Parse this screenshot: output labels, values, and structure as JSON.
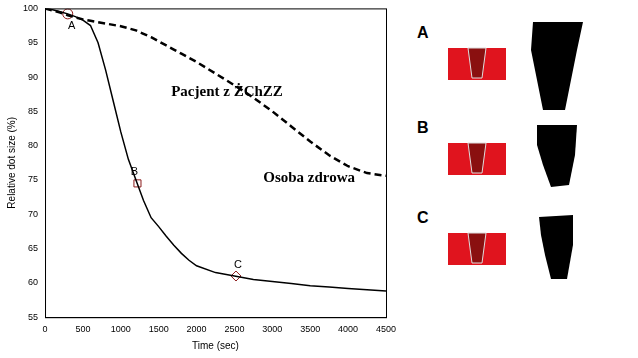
{
  "chart_data": {
    "type": "line",
    "x_label": "Time (sec)",
    "y_label": "Relative dot size (%)",
    "xlim": [
      0,
      4500
    ],
    "xticks": [
      0,
      500,
      1000,
      1500,
      2000,
      2500,
      3000,
      3500,
      4000,
      4500
    ],
    "ylim": [
      55,
      100
    ],
    "yticks": [
      55,
      60,
      65,
      70,
      75,
      80,
      85,
      90,
      95,
      100
    ],
    "grid": false,
    "x": [
      0,
      100,
      200,
      300,
      400,
      500,
      600,
      700,
      800,
      900,
      1000,
      1100,
      1200,
      1300,
      1400,
      1500,
      1600,
      1700,
      1800,
      1900,
      2000,
      2250,
      2500,
      2750,
      3000,
      3250,
      3500,
      3750,
      4000,
      4250,
      4500
    ],
    "series": [
      {
        "name": "Pacjent z ŻChZZ",
        "color": "#000000",
        "line_style": "dashed",
        "values": [
          100,
          99.7,
          99.4,
          99,
          98.7,
          98.4,
          98.2,
          98,
          97.8,
          97.6,
          97.4,
          97.1,
          96.8,
          96.3,
          95.8,
          95.2,
          94.6,
          94,
          93.4,
          92.8,
          92.2,
          90.5,
          88.8,
          87,
          85,
          82.8,
          80.6,
          78.6,
          77,
          76,
          75.6
        ]
      },
      {
        "name": "Osoba zdrowa",
        "color": "#000000",
        "line_style": "solid",
        "values": [
          100,
          99.8,
          99.5,
          99.2,
          98.8,
          98.3,
          97.5,
          95,
          91,
          86.5,
          82,
          78,
          75,
          72,
          69.5,
          68.2,
          66.8,
          65.5,
          64.3,
          63.3,
          62.5,
          61.5,
          61,
          60.5,
          60.2,
          59.9,
          59.6,
          59.4,
          59.2,
          59,
          58.8
        ]
      }
    ],
    "annotations": [
      {
        "label": "A",
        "x": 300,
        "y": 99.2,
        "marker": "circle",
        "color": "#8b1a1a"
      },
      {
        "label": "B",
        "x": 1220,
        "y": 74.5,
        "marker": "square",
        "color": "#8b1a1a"
      },
      {
        "label": "C",
        "x": 2520,
        "y": 61,
        "marker": "diamond",
        "color": "#8b1a1a"
      }
    ],
    "panels": [
      "A",
      "B",
      "C"
    ]
  }
}
